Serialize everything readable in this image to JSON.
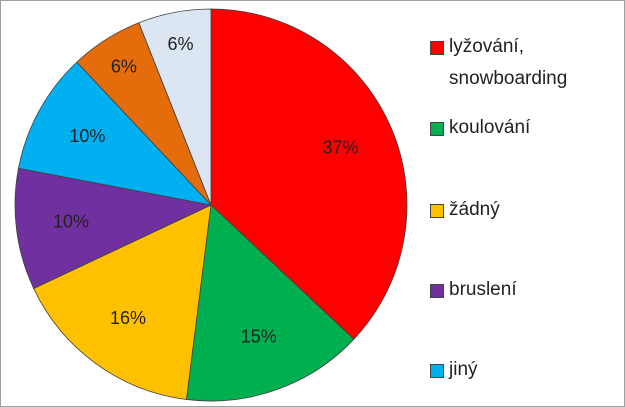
{
  "chart_data": {
    "type": "pie",
    "categories": [
      "lyžování, snowboarding",
      "koulování",
      "žádný",
      "bruslení",
      "jiný",
      null,
      null
    ],
    "values": [
      37,
      15,
      16,
      10,
      10,
      6,
      6
    ],
    "value_labels": [
      "37%",
      "15%",
      "16%",
      "10%",
      "10%",
      "6%",
      "6%"
    ],
    "colors": [
      "#ff0000",
      "#00b050",
      "#ffc000",
      "#7030a0",
      "#00b0f0",
      "#e46c0a",
      "#dce6f2"
    ],
    "legend": "right"
  }
}
